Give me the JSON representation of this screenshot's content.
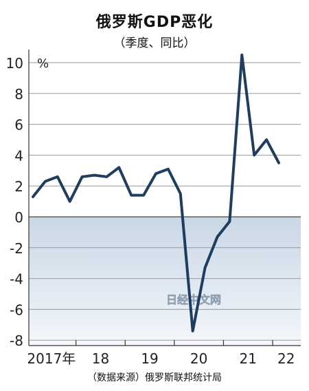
{
  "chart_data": {
    "type": "line",
    "title": "俄罗斯GDP恶化",
    "subtitle": "（季度、同比）",
    "unit_label": "%",
    "source": "（数据来源）俄罗斯联邦统计局",
    "watermark": "日经中文网",
    "y_ticks": [
      "10",
      "8",
      "6",
      "4",
      "2",
      "0",
      "-2",
      "-4",
      "-6",
      "-8"
    ],
    "ylim": [
      -8,
      10.5
    ],
    "x_labels": [
      "2017年",
      "18",
      "19",
      "20",
      "21",
      "22"
    ],
    "grid": true,
    "negative_region_shaded": true,
    "line_color": "#1f3d5e",
    "series": [
      {
        "x": [
          "2017Q1",
          "2017Q2",
          "2017Q3",
          "2017Q4",
          "2018Q1",
          "2018Q2",
          "2018Q3",
          "2018Q4",
          "2019Q1",
          "2019Q2",
          "2019Q3",
          "2019Q4",
          "2020Q1",
          "2020Q2",
          "2020Q3",
          "2020Q4",
          "2021Q1",
          "2021Q2",
          "2021Q3",
          "2021Q4",
          "2022Q1",
          "2022Q2"
        ],
        "values": [
          1.3,
          2.3,
          2.6,
          1.0,
          2.6,
          2.7,
          2.6,
          3.2,
          1.4,
          1.4,
          2.8,
          3.1,
          1.5,
          -7.4,
          -3.3,
          -1.3,
          -0.3,
          10.5,
          4.0,
          5.0,
          3.5,
          null
        ]
      }
    ]
  }
}
